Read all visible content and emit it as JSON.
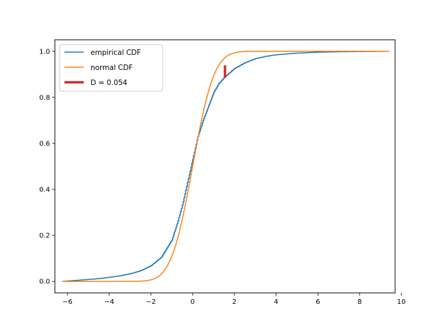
{
  "chart_data": {
    "type": "line",
    "title": "",
    "xlabel": "",
    "ylabel": "",
    "xlim": [
      -6.6,
      9.7
    ],
    "ylim": [
      -0.05,
      1.05
    ],
    "grid": false,
    "legend_placement": "top-left",
    "xticks": [
      -6,
      -4,
      -2,
      0,
      2,
      4,
      6,
      8,
      10
    ],
    "yticks": [
      0.0,
      0.2,
      0.4,
      0.6,
      0.8,
      1.0
    ],
    "xtick_labels": [
      "−6",
      "−4",
      "−2",
      "0",
      "2",
      "4",
      "6",
      "8",
      "10"
    ],
    "ytick_labels": [
      "0.0",
      "0.2",
      "0.4",
      "0.6",
      "0.8",
      "1.0"
    ],
    "series": [
      {
        "name": "empirical CDF",
        "color": "#1f77b4",
        "style": "step",
        "x": [
          -6.25,
          -5.5,
          -4.5,
          -4.0,
          -3.5,
          -3.0,
          -2.5,
          -2.0,
          -1.5,
          -1.0,
          -0.75,
          -0.5,
          -0.25,
          0.0,
          0.25,
          0.5,
          0.75,
          1.0,
          1.25,
          1.5,
          1.75,
          2.0,
          2.5,
          3.0,
          3.5,
          4.0,
          5.0,
          6.0,
          7.0,
          8.0,
          9.4
        ],
        "y": [
          0.0,
          0.005,
          0.012,
          0.018,
          0.024,
          0.033,
          0.046,
          0.068,
          0.105,
          0.18,
          0.25,
          0.33,
          0.43,
          0.53,
          0.63,
          0.7,
          0.76,
          0.82,
          0.86,
          0.885,
          0.905,
          0.925,
          0.95,
          0.968,
          0.978,
          0.985,
          0.992,
          0.996,
          0.998,
          0.999,
          1.0
        ]
      },
      {
        "name": "normal CDF",
        "color": "#ff7f0e",
        "style": "function",
        "function": "normal_cdf",
        "mean": 0,
        "std": 0.81,
        "x_range": [
          -6.25,
          9.4
        ]
      }
    ],
    "ks_statistic": {
      "label": "D = 0.054",
      "color": "#d62728",
      "x": 1.55,
      "y_low": 0.885,
      "y_high": 0.939
    },
    "legend": [
      {
        "label": "empirical CDF",
        "color": "#1f77b4",
        "kind": "line"
      },
      {
        "label": "normal CDF",
        "color": "#ff7f0e",
        "kind": "line"
      },
      {
        "label": "D = 0.054",
        "color": "#d62728",
        "kind": "thick-line"
      }
    ]
  }
}
